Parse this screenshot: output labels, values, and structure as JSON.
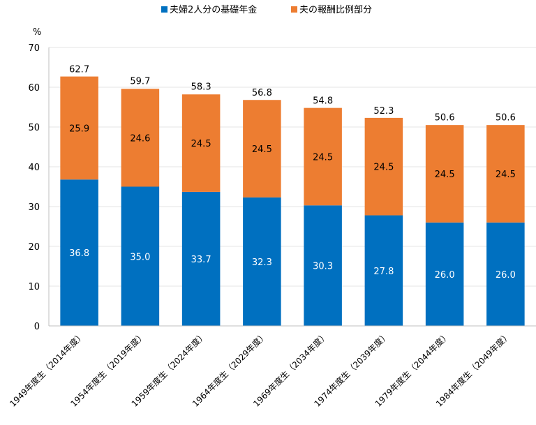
{
  "chart_data": {
    "type": "bar",
    "stacked": true,
    "y_unit": "%",
    "ylim": [
      0,
      70
    ],
    "yticks": [
      0,
      10,
      20,
      30,
      40,
      50,
      60,
      70
    ],
    "grid": true,
    "legend_position": "top",
    "categories": [
      "1949年度生（2014年度）",
      "1954年度生（2019年度）",
      "1959年度生（2024年度）",
      "1964年度生（2029年度）",
      "1969年度生（2034年度）",
      "1974年度生（2039年度）",
      "1979年度生（2044年度）",
      "1984年度生（2049年度）"
    ],
    "series": [
      {
        "name": "夫婦2人分の基礎年金",
        "color": "#0070c0",
        "values": [
          36.8,
          35.0,
          33.7,
          32.3,
          30.3,
          27.8,
          26.0,
          26.0
        ],
        "labels": [
          "36.8",
          "35.0",
          "33.7",
          "32.3",
          "30.3",
          "27.8",
          "26.0",
          "26.0"
        ]
      },
      {
        "name": "夫の報酬比例部分",
        "color": "#ed7d31",
        "values": [
          25.9,
          24.6,
          24.5,
          24.5,
          24.5,
          24.5,
          24.5,
          24.5
        ],
        "labels": [
          "25.9",
          "24.6",
          "24.5",
          "24.5",
          "24.5",
          "24.5",
          "24.5",
          "24.5"
        ]
      }
    ],
    "totals": [
      62.7,
      59.7,
      58.3,
      56.8,
      54.8,
      52.3,
      50.6,
      50.6
    ],
    "total_labels": [
      "62.7",
      "59.7",
      "58.3",
      "56.8",
      "54.8",
      "52.3",
      "50.6",
      "50.6"
    ]
  }
}
